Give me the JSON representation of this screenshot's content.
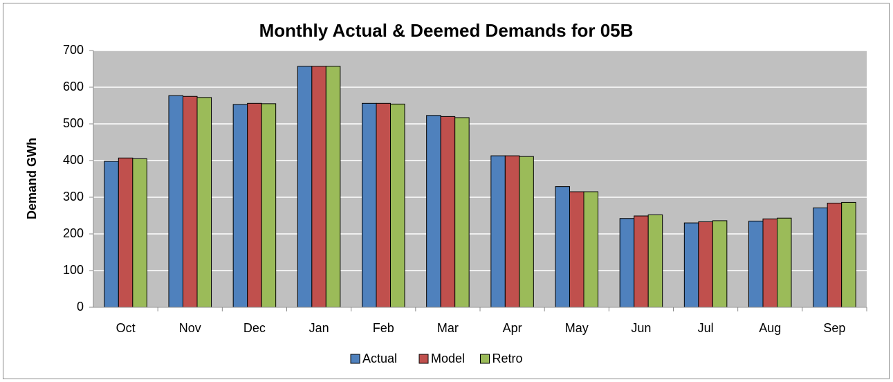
{
  "chart_data": {
    "type": "bar",
    "title": "Monthly Actual & Deemed Demands for 05B",
    "y_label": "Demand GWh",
    "categories": [
      "Oct",
      "Nov",
      "Dec",
      "Jan",
      "Feb",
      "Mar",
      "Apr",
      "May",
      "Jun",
      "Jul",
      "Aug",
      "Sep"
    ],
    "series": [
      {
        "name": "Actual",
        "color": "#4f81bd",
        "values": [
          398,
          577,
          553,
          657,
          556,
          523,
          413,
          329,
          242,
          230,
          235,
          271
        ]
      },
      {
        "name": "Model",
        "color": "#c0504d",
        "values": [
          407,
          575,
          556,
          657,
          556,
          520,
          413,
          315,
          249,
          233,
          241,
          284
        ]
      },
      {
        "name": "Retro",
        "color": "#9bbb59",
        "values": [
          405,
          572,
          555,
          657,
          554,
          517,
          411,
          315,
          252,
          236,
          243,
          286
        ]
      }
    ],
    "ylim": [
      0,
      700
    ],
    "yticks": [
      0,
      100,
      200,
      300,
      400,
      500,
      600,
      700
    ],
    "grid": true,
    "legend": "bottom"
  }
}
